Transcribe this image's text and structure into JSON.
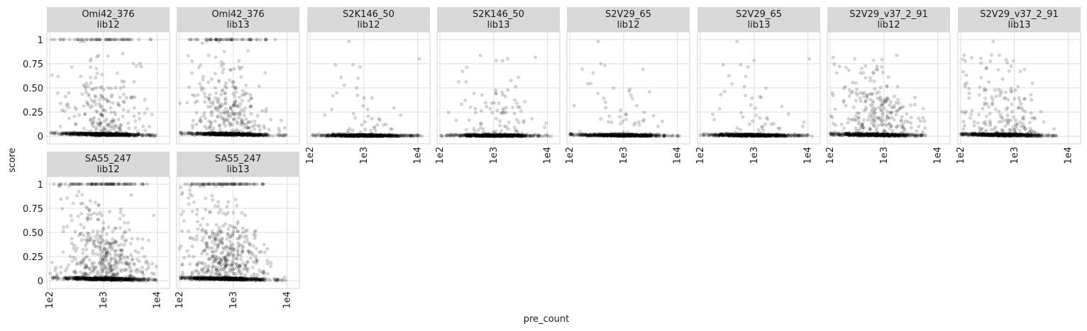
{
  "chart_data": {
    "type": "scatter",
    "xlabel": "pre_count",
    "ylabel": "score",
    "x_scale": "log10",
    "xlim": [
      100,
      15000
    ],
    "ylim": [
      -0.05,
      1.05
    ],
    "x_ticks": [
      100,
      1000,
      10000
    ],
    "x_tick_labels": [
      "1e2",
      "1e3",
      "1e4"
    ],
    "y_ticks": [
      0,
      0.25,
      0.5,
      0.75,
      1
    ],
    "y_tick_labels": [
      "0",
      "0.25",
      "0.50",
      "0.75",
      "1"
    ],
    "grid": true,
    "point_color": "#000000",
    "point_alpha": 0.15,
    "facet_rows": 2,
    "facet_cols": 8,
    "facets": [
      {
        "antibody": "Omi42_376",
        "library": "lib12",
        "row": 0,
        "col": 0,
        "x_range": [
          100,
          10000
        ],
        "n_points": 900,
        "baseline": 0.03,
        "scatter_fraction": 0.22,
        "one_fraction": 0.06,
        "center_x": 1000
      },
      {
        "antibody": "Omi42_376",
        "library": "lib13",
        "row": 0,
        "col": 1,
        "x_range": [
          100,
          10000
        ],
        "n_points": 900,
        "baseline": 0.03,
        "scatter_fraction": 0.28,
        "one_fraction": 0.05,
        "center_x": 800
      },
      {
        "antibody": "S2K146_50",
        "library": "lib12",
        "row": 0,
        "col": 2,
        "x_range": [
          100,
          12000
        ],
        "n_points": 700,
        "baseline": 0.01,
        "scatter_fraction": 0.06,
        "one_fraction": 0.0,
        "center_x": 1000
      },
      {
        "antibody": "S2K146_50",
        "library": "lib13",
        "row": 0,
        "col": 3,
        "x_range": [
          100,
          12000
        ],
        "n_points": 700,
        "baseline": 0.01,
        "scatter_fraction": 0.12,
        "one_fraction": 0.0,
        "center_x": 1000
      },
      {
        "antibody": "S2V29_65",
        "library": "lib12",
        "row": 0,
        "col": 4,
        "x_range": [
          100,
          12000
        ],
        "n_points": 700,
        "baseline": 0.015,
        "scatter_fraction": 0.06,
        "one_fraction": 0.0,
        "center_x": 900
      },
      {
        "antibody": "S2V29_65",
        "library": "lib13",
        "row": 0,
        "col": 5,
        "x_range": [
          100,
          12000
        ],
        "n_points": 700,
        "baseline": 0.015,
        "scatter_fraction": 0.06,
        "one_fraction": 0.0,
        "center_x": 900
      },
      {
        "antibody": "S2V29_v37_2_91",
        "library": "lib12",
        "row": 0,
        "col": 6,
        "x_range": [
          100,
          6000
        ],
        "n_points": 800,
        "baseline": 0.02,
        "scatter_fraction": 0.3,
        "one_fraction": 0.0,
        "center_x": 700
      },
      {
        "antibody": "S2V29_v37_2_91",
        "library": "lib13",
        "row": 0,
        "col": 7,
        "x_range": [
          100,
          6000
        ],
        "n_points": 800,
        "baseline": 0.02,
        "scatter_fraction": 0.22,
        "one_fraction": 0.0,
        "center_x": 600
      },
      {
        "antibody": "SA55_247",
        "library": "lib12",
        "row": 1,
        "col": 0,
        "x_range": [
          100,
          10000
        ],
        "n_points": 1100,
        "baseline": 0.03,
        "scatter_fraction": 0.35,
        "one_fraction": 0.08,
        "center_x": 1000
      },
      {
        "antibody": "SA55_247",
        "library": "lib13",
        "row": 1,
        "col": 1,
        "x_range": [
          100,
          10000
        ],
        "n_points": 1100,
        "baseline": 0.03,
        "scatter_fraction": 0.35,
        "one_fraction": 0.06,
        "center_x": 700
      }
    ]
  }
}
